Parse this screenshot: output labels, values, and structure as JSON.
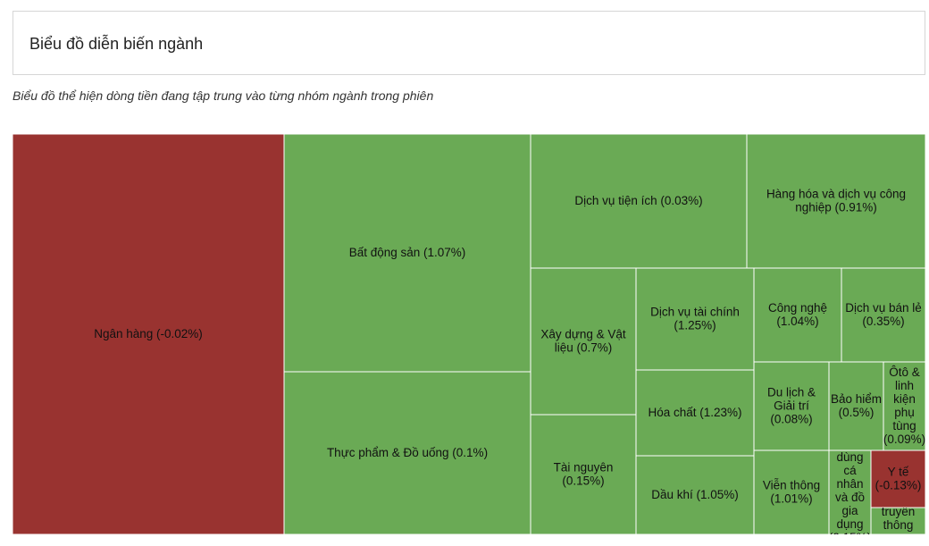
{
  "header": {
    "title": "Biểu đồ diễn biến ngành",
    "subtitle": "Biểu đồ thể hiện dòng tiền đang tập trung vào từng nhóm ngành trong phiên"
  },
  "colors": {
    "positive": "#6aaa55",
    "negative": "#993330",
    "border": "#ffffff",
    "label": "#111111"
  },
  "chart_data": {
    "type": "treemap",
    "items": [
      {
        "label": "Ngân hàng (-0.02%)",
        "name": "Ngân hàng",
        "change": -0.02,
        "size": 136197
      },
      {
        "label": "Bất động sản (1.07%)",
        "name": "Bất động sản",
        "change": 1.07,
        "size": 73038
      },
      {
        "label": "Thực phẩm & Đồ uống (0.1%)",
        "name": "Thực phẩm & Đồ uống",
        "change": 0.1,
        "size": 49707
      },
      {
        "label": "Dịch vụ tiện ích (0.03%)",
        "name": "Dịch vụ tiện ích",
        "change": 0.03,
        "size": 36300
      },
      {
        "label": "Hàng hóa và dịch vụ công nghiệp (0.91%)",
        "name": "Hàng hóa và dịch vụ công nghiệp",
        "change": 0.91,
        "size": 30450
      },
      {
        "label": "Xây dựng & Vật liệu (0.7%)",
        "name": "Xây dựng & Vật liệu",
        "change": 0.7,
        "size": 19470
      },
      {
        "label": "Tài nguyên (0.15%)",
        "name": "Tài nguyên",
        "change": 0.15,
        "size": 15576
      },
      {
        "label": "Dịch vụ tài chính (1.25%)",
        "name": "Dịch vụ tài chính",
        "change": 1.25,
        "size": 14804
      },
      {
        "label": "Hóa chất (1.23%)",
        "name": "Hóa chất",
        "change": 1.23,
        "size": 12705
      },
      {
        "label": "Dầu khí (1.05%)",
        "name": "Dầu khí",
        "change": 1.05,
        "size": 11423
      },
      {
        "label": "Công nghệ (1.04%)",
        "name": "Công nghệ",
        "change": 1.04,
        "size": 10198
      },
      {
        "label": "Dịch vụ bán lẻ (0.35%)",
        "name": "Dịch vụ bán lẻ",
        "change": 0.35,
        "size": 9858
      },
      {
        "label": "Du lịch & Giải trí (0.08%)",
        "name": "Du lịch & Giải trí",
        "change": 0.08,
        "size": 8316
      },
      {
        "label": "Bảo hiểm (0.5%)",
        "name": "Bảo hiểm",
        "change": 0.5,
        "size": 5795
      },
      {
        "label": "Ôtô & linh kiện phụ tùng (0.09%)",
        "name": "Ôtô & linh kiện phụ tùng",
        "change": 0.09,
        "size": 4800
      },
      {
        "label": "Viễn thông (1.01%)",
        "name": "Viễn thông",
        "change": 1.01,
        "size": 7380
      },
      {
        "label": "...dùng cá nhân và đồ gia dụng (...)",
        "name": "Hàng cá nhân & Gia dụng",
        "change": null,
        "size": 4300
      },
      {
        "label": "Y tế (-0.13%)",
        "name": "Y tế",
        "change": -0.13,
        "size": 3540
      },
      {
        "label": "...tiện truyền thông",
        "name": "Truyền thông",
        "change": null,
        "size": 1800
      }
    ]
  }
}
